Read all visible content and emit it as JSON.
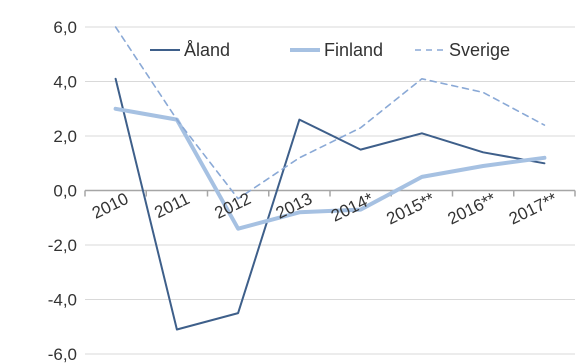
{
  "chart_data": {
    "type": "line",
    "title": "",
    "xlabel": "",
    "ylabel": "",
    "categories": [
      "2010",
      "2011",
      "2012",
      "2013",
      "2014*",
      "2015**",
      "2016**",
      "2017**"
    ],
    "ylim": [
      -6,
      6
    ],
    "yticks": [
      6,
      4,
      2,
      0,
      -2,
      -4,
      -6
    ],
    "ytick_labels": [
      "6,0",
      "4,0",
      "2,0",
      "0,0",
      "-2,0",
      "-4,0",
      "-6,0"
    ],
    "grid": "horizontal",
    "legend_position": "top",
    "series": [
      {
        "name": "Åland",
        "values": [
          4.1,
          -5.1,
          -4.5,
          2.6,
          1.5,
          2.1,
          1.4,
          1.0
        ],
        "color": "#3e5f8a",
        "style": "solid"
      },
      {
        "name": "Finland",
        "values": [
          3.0,
          2.6,
          -1.4,
          -0.8,
          -0.7,
          0.5,
          0.9,
          1.2
        ],
        "color": "#a6c1e2",
        "style": "solid"
      },
      {
        "name": "Sverige",
        "values": [
          6.0,
          2.6,
          -0.3,
          1.2,
          2.3,
          4.1,
          3.6,
          2.4
        ],
        "color": "#8aa9d6",
        "style": "dashed"
      }
    ]
  }
}
